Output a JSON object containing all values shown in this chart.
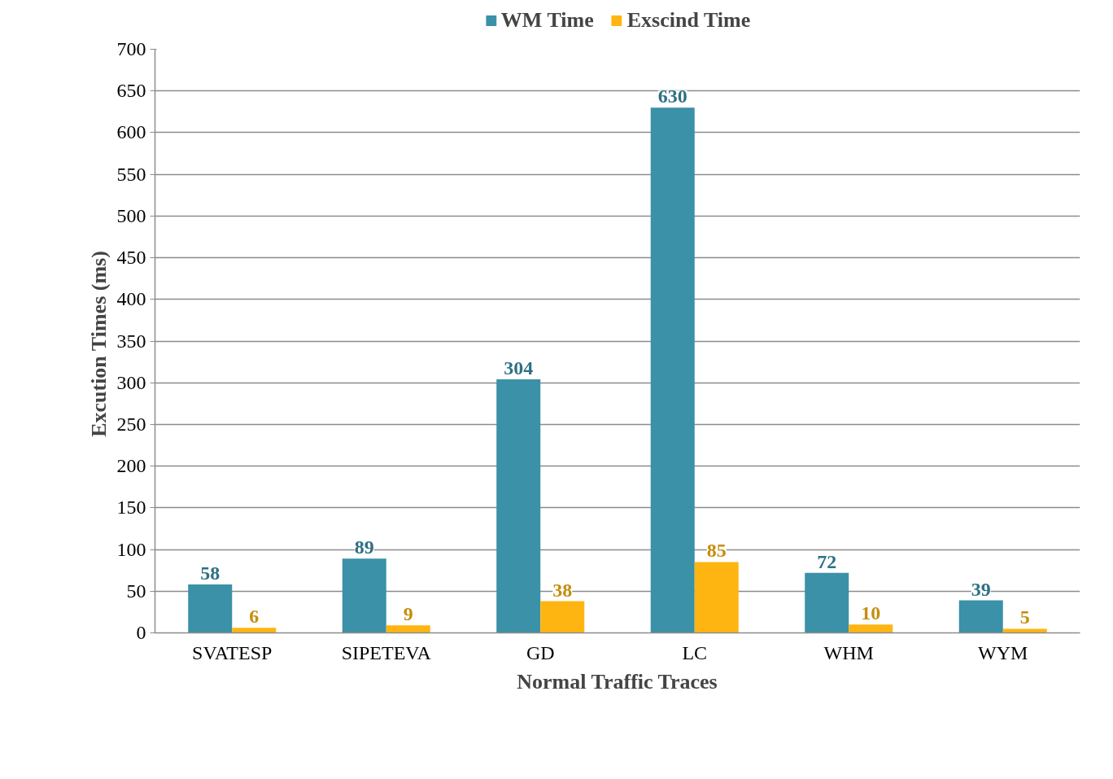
{
  "chart_data": {
    "type": "bar",
    "xlabel": "Normal Traffic Traces",
    "ylabel": "Excution Times  (ms)",
    "categories": [
      "SVATESP",
      "SIPETEVA",
      "GD",
      "LC",
      "WHM",
      "WYM"
    ],
    "series": [
      {
        "name": "WM Time",
        "color": "#3a91a8",
        "values": [
          58,
          89,
          304,
          630,
          72,
          39
        ]
      },
      {
        "name": "Exscind Time",
        "color": "#ffb511",
        "values": [
          6,
          9,
          38,
          85,
          10,
          5
        ]
      }
    ],
    "ylim": [
      0,
      700
    ],
    "yticks": [
      0,
      50,
      100,
      150,
      200,
      250,
      300,
      350,
      400,
      450,
      500,
      550,
      600,
      650,
      700
    ],
    "grid": "y",
    "legend": "top",
    "data_labels": true
  }
}
